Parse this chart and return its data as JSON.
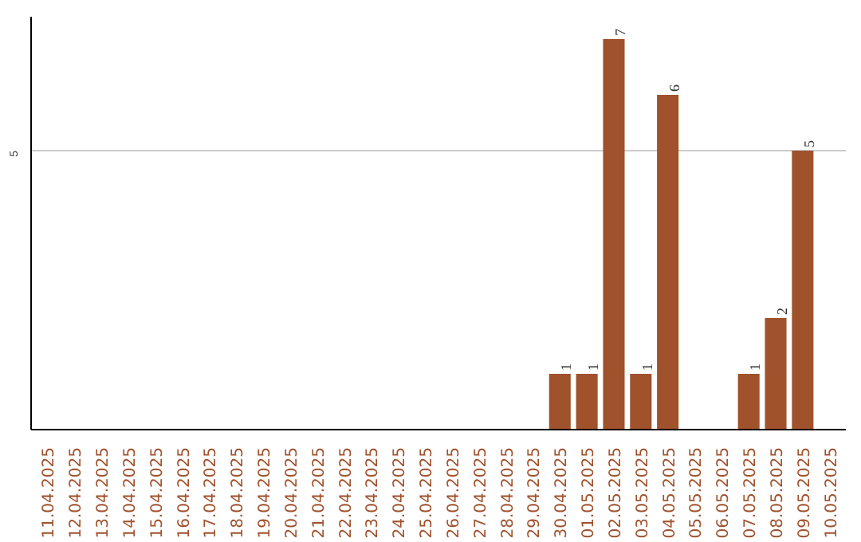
{
  "chart_data": {
    "type": "bar",
    "categories": [
      "11.04.2025",
      "12.04.2025",
      "13.04.2025",
      "14.04.2025",
      "15.04.2025",
      "16.04.2025",
      "17.04.2025",
      "18.04.2025",
      "19.04.2025",
      "20.04.2025",
      "21.04.2025",
      "22.04.2025",
      "23.04.2025",
      "24.04.2025",
      "25.04.2025",
      "26.04.2025",
      "27.04.2025",
      "28.04.2025",
      "29.04.2025",
      "30.04.2025",
      "01.05.2025",
      "02.05.2025",
      "03.05.2025",
      "04.05.2025",
      "05.05.2025",
      "06.05.2025",
      "07.05.2025",
      "08.05.2025",
      "09.05.2025",
      "10.05.2025"
    ],
    "values": [
      null,
      null,
      null,
      null,
      null,
      null,
      null,
      null,
      null,
      null,
      null,
      null,
      null,
      null,
      null,
      null,
      null,
      null,
      null,
      1,
      1,
      7,
      1,
      6,
      null,
      null,
      1,
      2,
      5,
      null
    ],
    "color": "#a0522d",
    "ylim": [
      0,
      7.4
    ],
    "yticks": [
      5
    ],
    "grid": "y",
    "data_labels": true
  }
}
